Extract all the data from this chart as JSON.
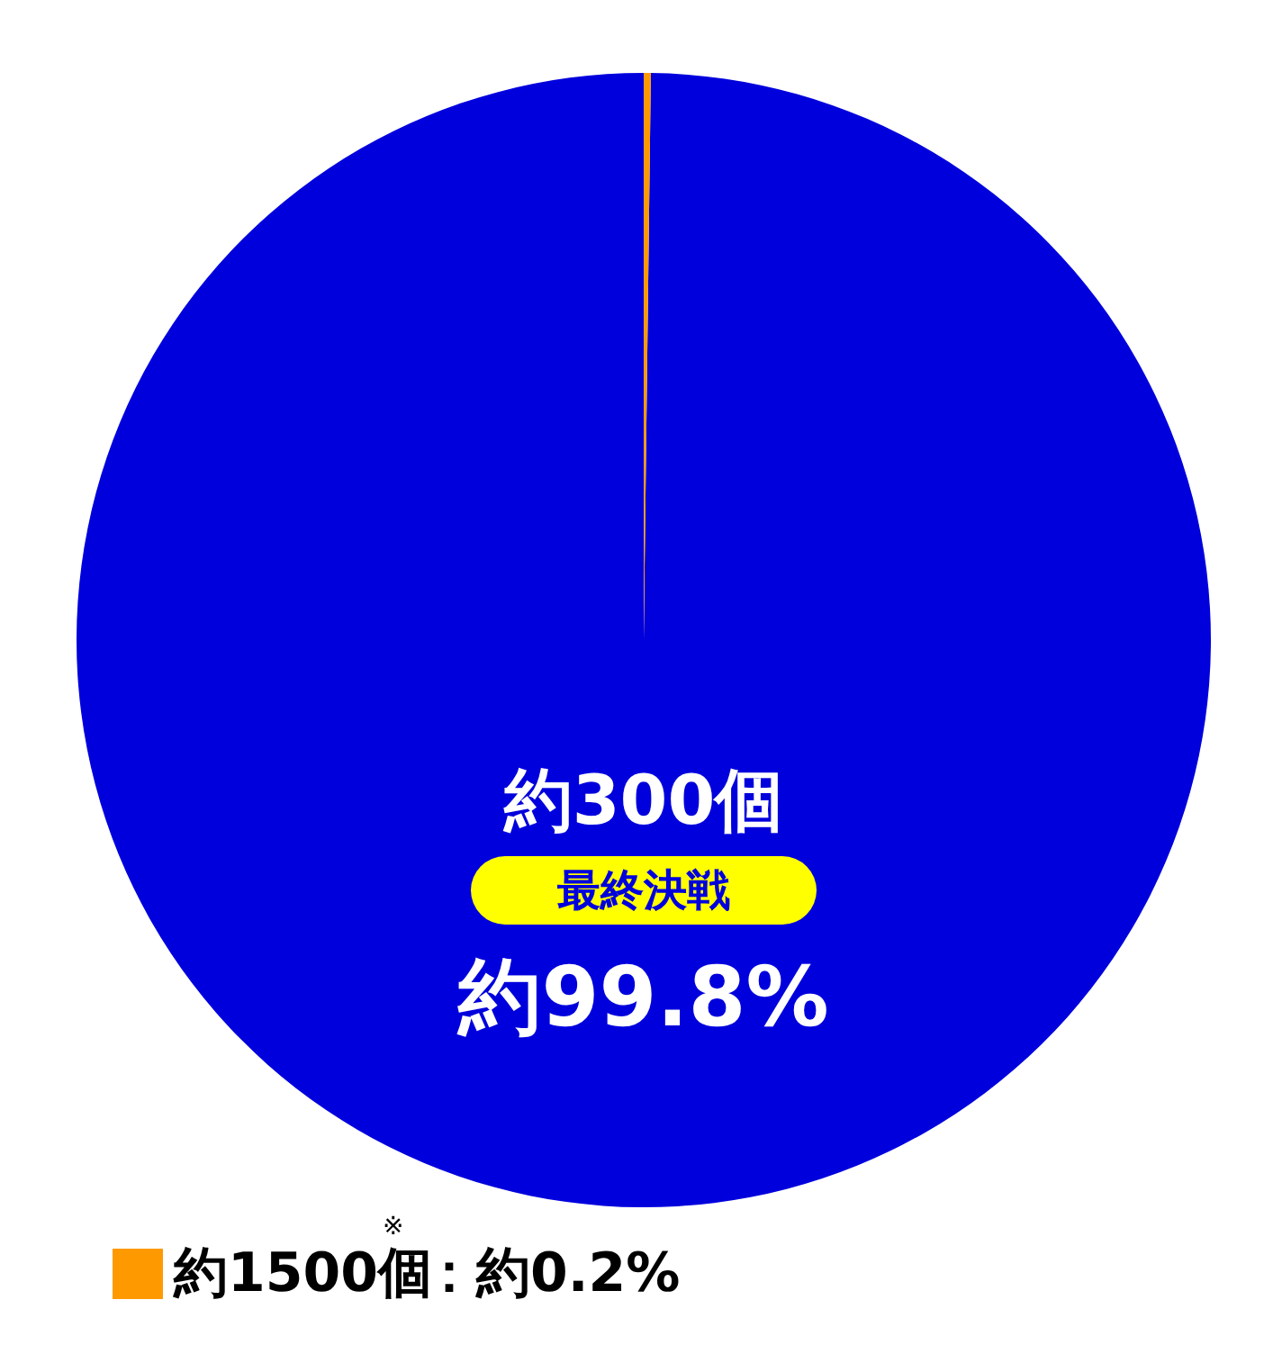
{
  "chart_data": {
    "type": "pie",
    "categories": [
      "約300個",
      "約1500個$^{※}$"
    ],
    "values": [
      99.8,
      0.2
    ],
    "colors": [
      "#0000dd",
      "#ff9900"
    ],
    "value_labels": [
      "約99.8%",
      "：約0.2%"
    ],
    "annotations": [
      "最終決戦"
    ],
    "legend": "bottom"
  }
}
